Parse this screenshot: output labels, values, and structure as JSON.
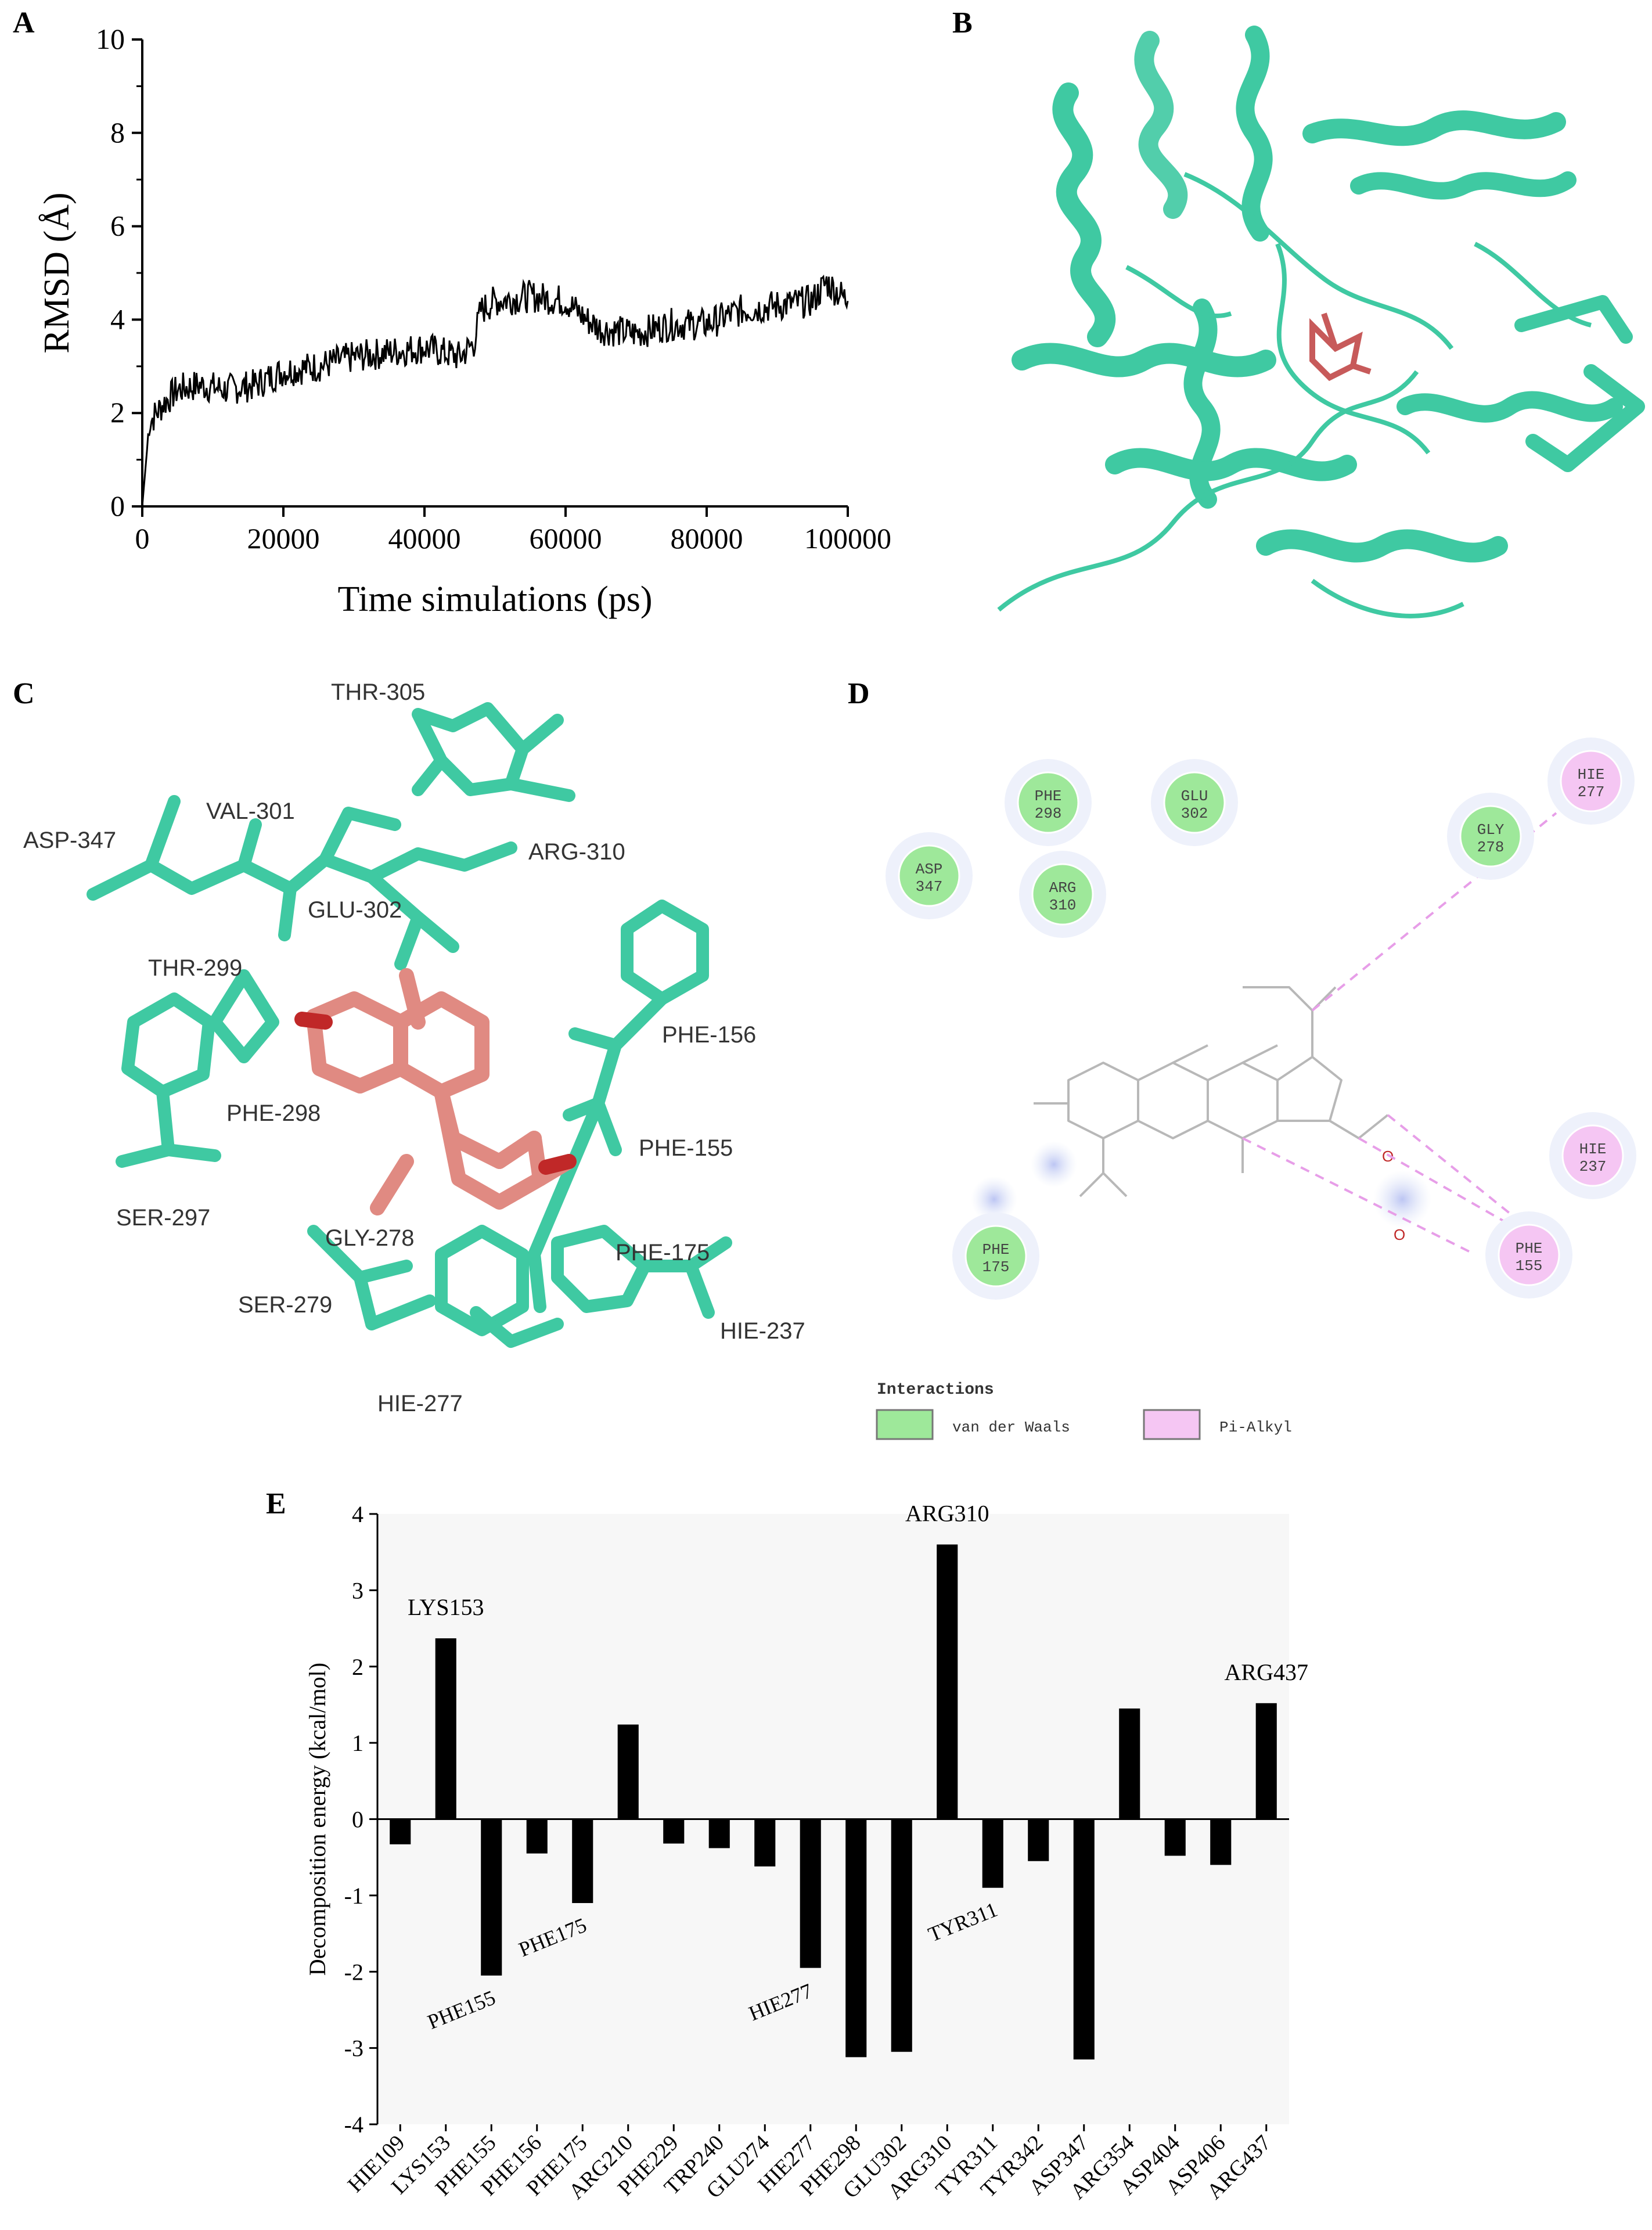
{
  "panels": {
    "A": "A",
    "B": "B",
    "C": "C",
    "D": "D",
    "E": "E"
  },
  "panel_c_labels": [
    "THR-305",
    "VAL-301",
    "ASP-347",
    "ARG-310",
    "GLU-302",
    "THR-299",
    "PHE-298",
    "SER-297",
    "PHE-156",
    "PHE-155",
    "GLY-278",
    "PHE-175",
    "SER-279",
    "HIE-237",
    "HIE-277"
  ],
  "panel_d": {
    "residues": [
      {
        "name": "PHE",
        "num": "298",
        "kind": "vdw"
      },
      {
        "name": "GLU",
        "num": "302",
        "kind": "vdw"
      },
      {
        "name": "GLY",
        "num": "278",
        "kind": "vdw"
      },
      {
        "name": "HIE",
        "num": "277",
        "kind": "pialkyl"
      },
      {
        "name": "ASP",
        "num": "347",
        "kind": "vdw"
      },
      {
        "name": "ARG",
        "num": "310",
        "kind": "vdw"
      },
      {
        "name": "HIE",
        "num": "237",
        "kind": "pialkyl"
      },
      {
        "name": "PHE",
        "num": "155",
        "kind": "pialkyl"
      },
      {
        "name": "PHE",
        "num": "175",
        "kind": "vdw"
      }
    ],
    "legend_title": "Interactions",
    "legend_vdw": "van der Waals",
    "legend_pialkyl": "Pi-Alkyl",
    "colors": {
      "vdw": "#9ee89a",
      "pialkyl": "#f5c6f3",
      "pialkyl_line": "#e79ee8",
      "vdw_glow": "#dfe6f7"
    }
  },
  "chart_data": [
    {
      "type": "line",
      "panel": "A",
      "xlabel": "Time simulations (ps)",
      "ylabel": "RMSD (Å)",
      "xlim": [
        0,
        100000
      ],
      "ylim": [
        0,
        10
      ],
      "xticks": [
        0,
        20000,
        40000,
        60000,
        80000,
        100000
      ],
      "yticks": [
        0,
        2,
        4,
        6,
        8,
        10
      ],
      "series": [
        {
          "color": "#000000",
          "x": [
            0,
            1000,
            3000,
            5000,
            8000,
            12000,
            16000,
            20000,
            25000,
            30000,
            35000,
            40000,
            45000,
            47000,
            48000,
            50000,
            55000,
            60000,
            63000,
            65000,
            70000,
            75000,
            80000,
            85000,
            90000,
            95000,
            97000,
            100000
          ],
          "y": [
            0,
            1.8,
            2.2,
            2.5,
            2.6,
            2.5,
            2.6,
            2.9,
            3.0,
            3.2,
            3.3,
            3.4,
            3.2,
            3.5,
            4.2,
            4.4,
            4.5,
            4.4,
            4.0,
            3.8,
            3.7,
            3.9,
            3.9,
            4.2,
            4.3,
            4.4,
            4.8,
            4.4
          ]
        }
      ]
    },
    {
      "type": "bar",
      "panel": "E",
      "ylabel": "Decomposition energy (kcal/mol)",
      "ylim": [
        -4,
        4
      ],
      "yticks": [
        -4,
        -3,
        -2,
        -1,
        0,
        1,
        2,
        3,
        4
      ],
      "categories": [
        "HIE109",
        "LYS153",
        "PHE155",
        "PHE156",
        "PHE175",
        "ARG210",
        "PHE229",
        "TRP240",
        "GLU274",
        "HIE277",
        "PHE298",
        "GLU302",
        "ARG310",
        "TYR311",
        "TYR342",
        "ASP347",
        "ARG354",
        "ASP404",
        "ASP406",
        "ARG437"
      ],
      "values": [
        -0.33,
        2.37,
        -2.05,
        -0.45,
        -1.1,
        1.24,
        -0.32,
        -0.38,
        -0.62,
        -1.95,
        -3.12,
        -3.05,
        3.6,
        -0.9,
        -0.55,
        -3.15,
        1.45,
        -0.48,
        -0.6,
        1.52
      ],
      "annotations": [
        {
          "text": "LYS153",
          "category": "LYS153",
          "side": "above"
        },
        {
          "text": "PHE155",
          "category": "PHE155",
          "side": "below"
        },
        {
          "text": "PHE175",
          "category": "PHE175",
          "side": "below"
        },
        {
          "text": "HIE277",
          "category": "HIE277",
          "side": "below"
        },
        {
          "text": "ARG310",
          "category": "ARG310",
          "side": "above"
        },
        {
          "text": "TYR311",
          "category": "TYR311",
          "side": "below"
        },
        {
          "text": "ARG437",
          "category": "ARG437",
          "side": "above"
        }
      ]
    }
  ]
}
